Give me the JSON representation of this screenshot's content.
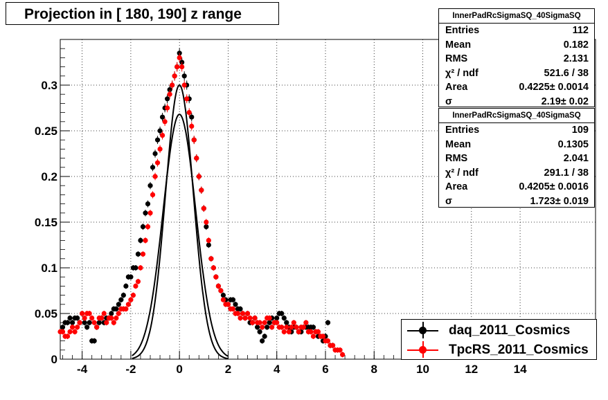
{
  "title": "Projection in [ 180, 190] z range",
  "stats_boxes": [
    {
      "name": "InnerPadRcSigmaSQ_40SigmaSQ",
      "rows": [
        {
          "label": "Entries",
          "value": "112"
        },
        {
          "label": "Mean",
          "value": "0.182"
        },
        {
          "label": "RMS",
          "value": "2.131"
        },
        {
          "label": "χ² / ndf",
          "value": "521.6 / 38"
        },
        {
          "label": "Area",
          "value": "0.4225± 0.0014"
        },
        {
          "label": "σ",
          "value": "2.19± 0.02"
        }
      ]
    },
    {
      "name": "InnerPadRcSigmaSQ_40SigmaSQ",
      "rows": [
        {
          "label": "Entries",
          "value": "109"
        },
        {
          "label": "Mean",
          "value": "0.1305"
        },
        {
          "label": "RMS",
          "value": "2.041"
        },
        {
          "label": "χ² / ndf",
          "value": "291.1 / 38"
        },
        {
          "label": "Area",
          "value": "0.4205± 0.0016"
        },
        {
          "label": "σ",
          "value": "1.723± 0.019"
        }
      ]
    }
  ],
  "legend": [
    {
      "label": "daq_2011_Cosmics",
      "color": "#000000"
    },
    {
      "label": "TpcRS_2011_Cosmics",
      "color": "#ff0000"
    }
  ],
  "chart_data": {
    "type": "scatter",
    "xlim": [
      -4.9,
      17.1
    ],
    "ylim": [
      0,
      0.35
    ],
    "grid": true,
    "x_ticks": [
      -4,
      -2,
      0,
      2,
      4,
      6,
      8,
      10,
      12,
      14
    ],
    "y_ticks": [
      0,
      0.05,
      0.1,
      0.15,
      0.2,
      0.25,
      0.3
    ],
    "y_tick_labels": [
      "0",
      "0.05",
      "0.1",
      "0.15",
      "0.2",
      "0.25",
      "0.3"
    ],
    "series": [
      {
        "name": "daq_2011_Cosmics",
        "color": "#000000",
        "x": [
          -4.8,
          -4.7,
          -4.6,
          -4.5,
          -4.4,
          -4.3,
          -4.2,
          -4.1,
          -4.0,
          -3.9,
          -3.8,
          -3.7,
          -3.6,
          -3.5,
          -3.4,
          -3.3,
          -3.2,
          -3.1,
          -3.0,
          -2.9,
          -2.8,
          -2.7,
          -2.6,
          -2.5,
          -2.4,
          -2.3,
          -2.2,
          -2.1,
          -2.0,
          -1.9,
          -1.8,
          -1.7,
          -1.6,
          -1.5,
          -1.4,
          -1.3,
          -1.2,
          -1.1,
          -1.0,
          -0.9,
          -0.8,
          -0.7,
          -0.6,
          -0.5,
          -0.4,
          -0.3,
          -0.2,
          -0.1,
          0.0,
          0.1,
          0.2,
          0.3,
          0.4,
          0.5,
          0.6,
          0.7,
          0.8,
          0.9,
          1.0,
          1.1,
          1.2,
          1.3,
          1.4,
          1.5,
          1.6,
          1.7,
          1.8,
          1.9,
          2.0,
          2.1,
          2.2,
          2.3,
          2.4,
          2.5,
          2.6,
          2.7,
          2.8,
          2.9,
          3.0,
          3.1,
          3.2,
          3.3,
          3.4,
          3.5,
          3.6,
          3.7,
          3.8,
          3.9,
          4.0,
          4.1,
          4.2,
          4.3,
          4.4,
          4.5,
          4.6,
          4.7,
          4.8,
          4.9,
          5.0,
          5.1,
          5.2,
          5.3,
          5.4,
          5.5,
          5.6,
          5.7,
          5.8,
          5.9,
          6.0,
          6.1,
          6.2,
          6.3
        ],
        "y": [
          0.035,
          0.04,
          0.04,
          0.045,
          0.04,
          0.045,
          0.045,
          0.04,
          0.05,
          0.04,
          0.035,
          0.04,
          0.02,
          0.02,
          0.035,
          0.04,
          0.045,
          0.04,
          0.045,
          0.045,
          0.05,
          0.055,
          0.055,
          0.06,
          0.065,
          0.07,
          0.08,
          0.09,
          0.09,
          0.1,
          0.1,
          0.115,
          0.13,
          0.145,
          0.16,
          0.17,
          0.19,
          0.21,
          0.225,
          0.24,
          0.25,
          0.265,
          0.275,
          0.285,
          0.295,
          0.3,
          0.31,
          0.32,
          0.335,
          0.325,
          0.31,
          0.3,
          0.285,
          0.265,
          0.24,
          0.22,
          0.2,
          0.185,
          0.165,
          0.145,
          0.125,
          0.11,
          0.1,
          0.09,
          0.08,
          0.075,
          0.07,
          0.065,
          0.06,
          0.065,
          0.065,
          0.06,
          0.055,
          0.055,
          0.05,
          0.045,
          0.05,
          0.04,
          0.04,
          0.045,
          0.035,
          0.03,
          0.02,
          0.025,
          0.035,
          0.04,
          0.045,
          0.04,
          0.045,
          0.05,
          0.05,
          0.045,
          0.04,
          0.035,
          0.03,
          0.035,
          0.035,
          0.03,
          0.03,
          0.035,
          0.035,
          0.035,
          0.035,
          0.035,
          0.03,
          0.025,
          0.025,
          0.02,
          0.025,
          0.04,
          0.015,
          0.015
        ]
      },
      {
        "name": "TpcRS_2011_Cosmics",
        "color": "#ff0000",
        "x": [
          -4.9,
          -4.8,
          -4.7,
          -4.6,
          -4.5,
          -4.4,
          -4.3,
          -4.2,
          -4.1,
          -4.0,
          -3.9,
          -3.8,
          -3.7,
          -3.6,
          -3.5,
          -3.4,
          -3.3,
          -3.2,
          -3.1,
          -3.0,
          -2.9,
          -2.8,
          -2.7,
          -2.6,
          -2.5,
          -2.4,
          -2.3,
          -2.2,
          -2.1,
          -2.0,
          -1.9,
          -1.8,
          -1.7,
          -1.6,
          -1.5,
          -1.4,
          -1.3,
          -1.2,
          -1.1,
          -1.0,
          -0.9,
          -0.8,
          -0.7,
          -0.6,
          -0.5,
          -0.4,
          -0.3,
          -0.2,
          -0.1,
          0.0,
          0.1,
          0.2,
          0.3,
          0.4,
          0.5,
          0.6,
          0.7,
          0.8,
          0.9,
          1.0,
          1.1,
          1.2,
          1.3,
          1.4,
          1.5,
          1.6,
          1.7,
          1.8,
          1.9,
          2.0,
          2.1,
          2.2,
          2.3,
          2.4,
          2.5,
          2.6,
          2.7,
          2.8,
          2.9,
          3.0,
          3.1,
          3.2,
          3.3,
          3.4,
          3.5,
          3.6,
          3.7,
          3.8,
          3.9,
          4.0,
          4.1,
          4.2,
          4.3,
          4.4,
          4.5,
          4.6,
          4.7,
          4.8,
          4.9,
          5.0,
          5.1,
          5.2,
          5.3,
          5.4,
          5.5,
          5.6,
          5.7,
          5.8,
          5.9,
          6.0,
          6.1,
          6.2,
          6.3,
          6.4,
          6.5,
          6.6,
          6.7
        ],
        "y": [
          0.03,
          0.03,
          0.025,
          0.025,
          0.03,
          0.035,
          0.03,
          0.035,
          0.04,
          0.05,
          0.045,
          0.05,
          0.05,
          0.045,
          0.04,
          0.035,
          0.045,
          0.045,
          0.05,
          0.04,
          0.045,
          0.045,
          0.04,
          0.045,
          0.05,
          0.055,
          0.055,
          0.055,
          0.06,
          0.065,
          0.07,
          0.08,
          0.085,
          0.1,
          0.115,
          0.13,
          0.145,
          0.16,
          0.18,
          0.2,
          0.215,
          0.23,
          0.245,
          0.26,
          0.275,
          0.29,
          0.3,
          0.31,
          0.32,
          0.33,
          0.32,
          0.3,
          0.285,
          0.27,
          0.255,
          0.24,
          0.22,
          0.2,
          0.185,
          0.165,
          0.15,
          0.13,
          0.11,
          0.1,
          0.09,
          0.08,
          0.075,
          0.065,
          0.06,
          0.06,
          0.055,
          0.055,
          0.05,
          0.05,
          0.045,
          0.05,
          0.045,
          0.05,
          0.045,
          0.04,
          0.045,
          0.04,
          0.04,
          0.035,
          0.04,
          0.045,
          0.045,
          0.035,
          0.04,
          0.04,
          0.035,
          0.035,
          0.03,
          0.035,
          0.03,
          0.035,
          0.04,
          0.035,
          0.03,
          0.035,
          0.035,
          0.04,
          0.03,
          0.03,
          0.025,
          0.03,
          0.03,
          0.025,
          0.025,
          0.02,
          0.02,
          0.015,
          0.015,
          0.01,
          0.01,
          0.01,
          0.005
        ]
      }
    ],
    "fits": [
      {
        "name": "daq_2011_Cosmics",
        "color": "#000000",
        "amplitude": 0.268,
        "sigma": 0.67,
        "xrange": [
          -1.95,
          2.0
        ]
      },
      {
        "name": "TpcRS_2011_Cosmics",
        "color": "#000000",
        "amplitude": 0.3,
        "sigma": 0.57,
        "xrange": [
          -1.95,
          2.0
        ]
      }
    ]
  }
}
